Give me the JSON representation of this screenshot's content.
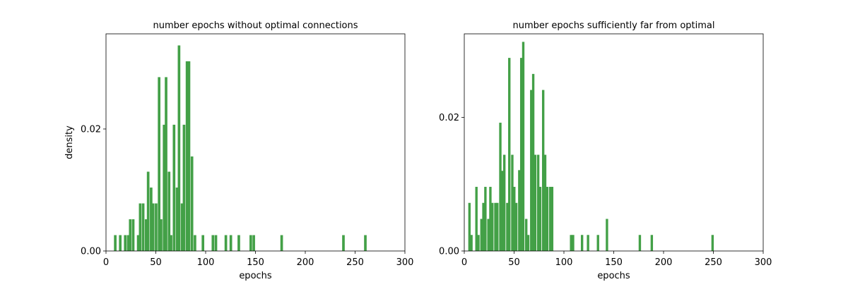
{
  "chart_data": [
    {
      "type": "bar",
      "title": "number epochs without optimal connections",
      "xlabel": "epochs",
      "ylabel": "density",
      "xlim": [
        0,
        300
      ],
      "ylim": [
        0,
        0.0356
      ],
      "xticks": [
        0,
        50,
        100,
        150,
        200,
        250,
        300
      ],
      "yticks": [
        0.0,
        0.02
      ],
      "ytick_labels": [
        "0.00",
        "0.02"
      ],
      "bar_color": "#43a047",
      "bin_width": 2.6,
      "bins_start": [
        8,
        13,
        18,
        21,
        23,
        26,
        31,
        33,
        36,
        39,
        41,
        44,
        46,
        49,
        52,
        54,
        57,
        59,
        62,
        64,
        67,
        70,
        72,
        75,
        77,
        80,
        82,
        85,
        88,
        96,
        106,
        109,
        119,
        124,
        132,
        144,
        147,
        175,
        237,
        259
      ],
      "values": [
        0.0026,
        0.0026,
        0.0026,
        0.0026,
        0.0052,
        0.0052,
        0.0026,
        0.0078,
        0.0078,
        0.0052,
        0.013,
        0.0104,
        0.0078,
        0.0078,
        0.0285,
        0.0052,
        0.0207,
        0.0285,
        0.013,
        0.0026,
        0.0207,
        0.0104,
        0.0337,
        0.0078,
        0.0207,
        0.0311,
        0.0311,
        0.0155,
        0.0026,
        0.0026,
        0.0026,
        0.0026,
        0.0026,
        0.0026,
        0.0026,
        0.0026,
        0.0026,
        0.0026,
        0.0026,
        0.0026
      ]
    },
    {
      "type": "bar",
      "title": "number epochs sufficiently far from optimal",
      "xlabel": "epochs",
      "ylabel": "",
      "xlim": [
        0,
        300
      ],
      "ylim": [
        0,
        0.0325
      ],
      "xticks": [
        0,
        50,
        100,
        150,
        200,
        250,
        300
      ],
      "yticks": [
        0.0,
        0.02
      ],
      "ytick_labels": [
        "0.00",
        "0.02"
      ],
      "bar_color": "#43a047",
      "bin_width": 2.4,
      "bins_start": [
        4,
        6,
        11,
        13,
        16,
        18,
        20,
        23,
        25,
        27,
        30,
        32,
        35,
        37,
        39,
        42,
        44,
        47,
        49,
        51,
        54,
        56,
        58,
        61,
        63,
        66,
        68,
        70,
        73,
        75,
        78,
        80,
        82,
        85,
        87,
        106,
        108,
        117,
        123,
        133,
        142,
        175,
        187,
        248
      ],
      "values": [
        0.0072,
        0.0024,
        0.0096,
        0.0024,
        0.0048,
        0.0072,
        0.0096,
        0.0048,
        0.0096,
        0.0072,
        0.0072,
        0.0072,
        0.0192,
        0.012,
        0.0144,
        0.0072,
        0.0289,
        0.0144,
        0.0096,
        0.0072,
        0.0121,
        0.0289,
        0.0313,
        0.0048,
        0.0024,
        0.0241,
        0.0265,
        0.0144,
        0.0144,
        0.0096,
        0.0241,
        0.0144,
        0.0096,
        0.0096,
        0.0096,
        0.0024,
        0.0024,
        0.0024,
        0.0024,
        0.0024,
        0.0048,
        0.0024,
        0.0024,
        0.0024
      ]
    }
  ]
}
